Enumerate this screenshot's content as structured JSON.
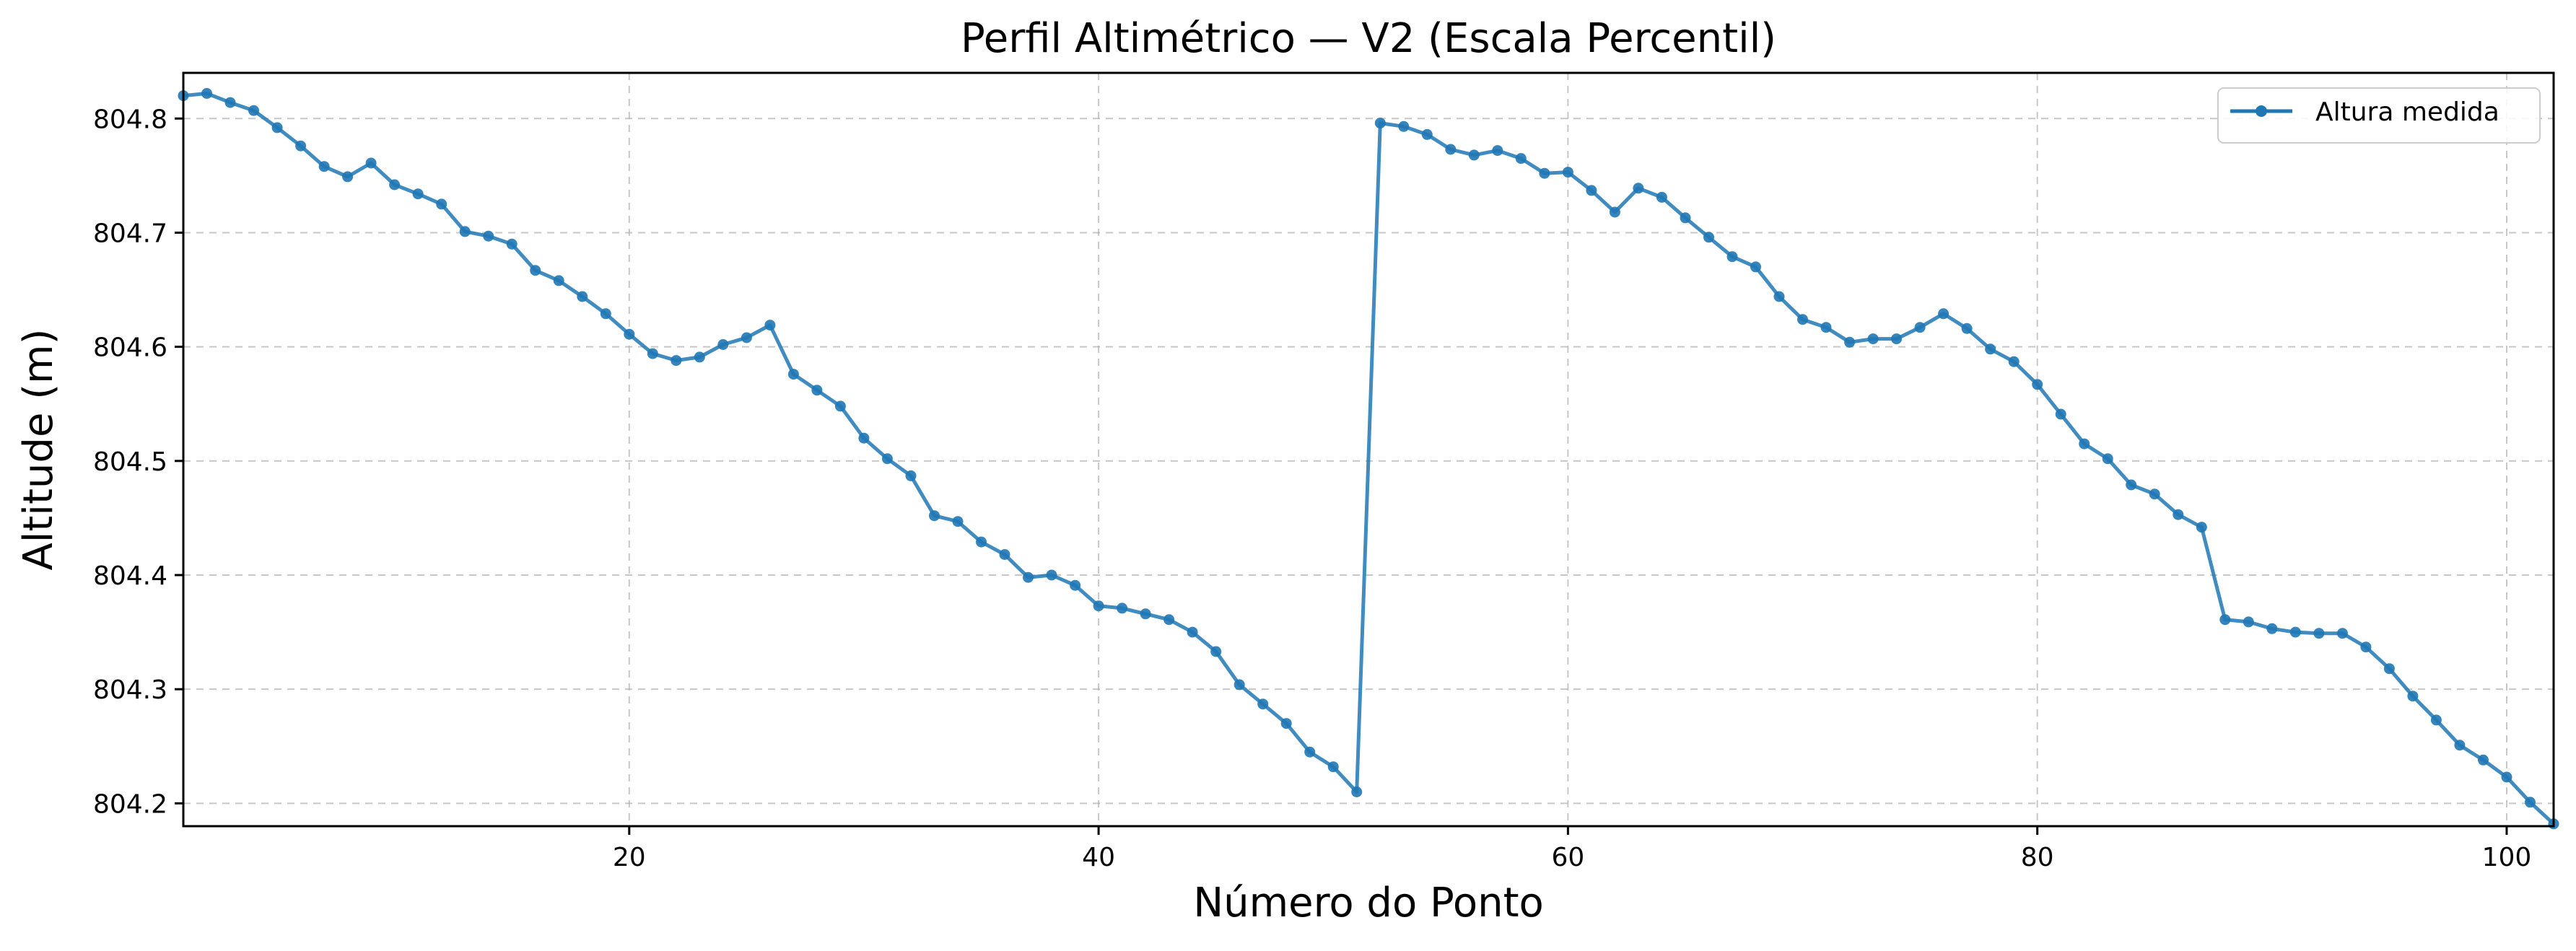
{
  "chart_data": {
    "type": "line",
    "title": "Perfil Altimétrico — V2 (Escala Percentil)",
    "xlabel": "Número do Ponto",
    "ylabel": "Altitude (m)",
    "xlim": [
      1,
      102
    ],
    "ylim": [
      804.18,
      804.84
    ],
    "xticks": [
      20,
      40,
      60,
      80,
      100
    ],
    "yticks": [
      804.2,
      804.3,
      804.4,
      804.5,
      804.6,
      804.7,
      804.8
    ],
    "ytick_labels": [
      "804.2",
      "804.3",
      "804.4",
      "804.5",
      "804.6",
      "804.7",
      "804.8"
    ],
    "xtick_labels": [
      "20",
      "40",
      "60",
      "80",
      "100"
    ],
    "grid": true,
    "legend_position": "top-right",
    "series": [
      {
        "name": "Altura medida",
        "color": "#1f77b4",
        "marker": "circle",
        "x": [
          1,
          2,
          3,
          4,
          5,
          6,
          7,
          8,
          9,
          10,
          11,
          12,
          13,
          14,
          15,
          16,
          17,
          18,
          19,
          20,
          21,
          22,
          23,
          24,
          25,
          26,
          27,
          28,
          29,
          30,
          31,
          32,
          33,
          34,
          35,
          36,
          37,
          38,
          39,
          40,
          41,
          42,
          43,
          44,
          45,
          46,
          47,
          48,
          49,
          50,
          51,
          52,
          53,
          54,
          55,
          56,
          57,
          58,
          59,
          60,
          61,
          62,
          63,
          64,
          65,
          66,
          67,
          68,
          69,
          70,
          71,
          72,
          73,
          74,
          75,
          76,
          77,
          78,
          79,
          80,
          81,
          82,
          83,
          84,
          85,
          86,
          87,
          88,
          89,
          90,
          91,
          92,
          93,
          94,
          95,
          96,
          97,
          98,
          99,
          100,
          101,
          102
        ],
        "y": [
          804.82,
          804.822,
          804.814,
          804.807,
          804.792,
          804.776,
          804.758,
          804.749,
          804.761,
          804.742,
          804.734,
          804.725,
          804.701,
          804.697,
          804.69,
          804.667,
          804.658,
          804.644,
          804.629,
          804.611,
          804.594,
          804.588,
          804.591,
          804.602,
          804.608,
          804.619,
          804.576,
          804.562,
          804.548,
          804.52,
          804.502,
          804.487,
          804.452,
          804.447,
          804.429,
          804.418,
          804.398,
          804.4,
          804.391,
          804.373,
          804.371,
          804.366,
          804.361,
          804.35,
          804.333,
          804.304,
          804.287,
          804.27,
          804.245,
          804.232,
          804.21,
          804.796,
          804.793,
          804.786,
          804.773,
          804.768,
          804.772,
          804.765,
          804.752,
          804.753,
          804.737,
          804.718,
          804.739,
          804.731,
          804.713,
          804.696,
          804.679,
          804.67,
          804.644,
          804.624,
          804.617,
          804.604,
          804.607,
          804.607,
          804.617,
          804.629,
          804.616,
          804.598,
          804.587,
          804.567,
          804.541,
          804.515,
          804.502,
          804.479,
          804.471,
          804.453,
          804.442,
          804.361,
          804.359,
          804.353,
          804.35,
          804.349,
          804.349,
          804.337,
          804.318,
          804.294,
          804.273,
          804.251,
          804.238,
          804.223,
          804.201,
          804.182
        ]
      }
    ]
  }
}
